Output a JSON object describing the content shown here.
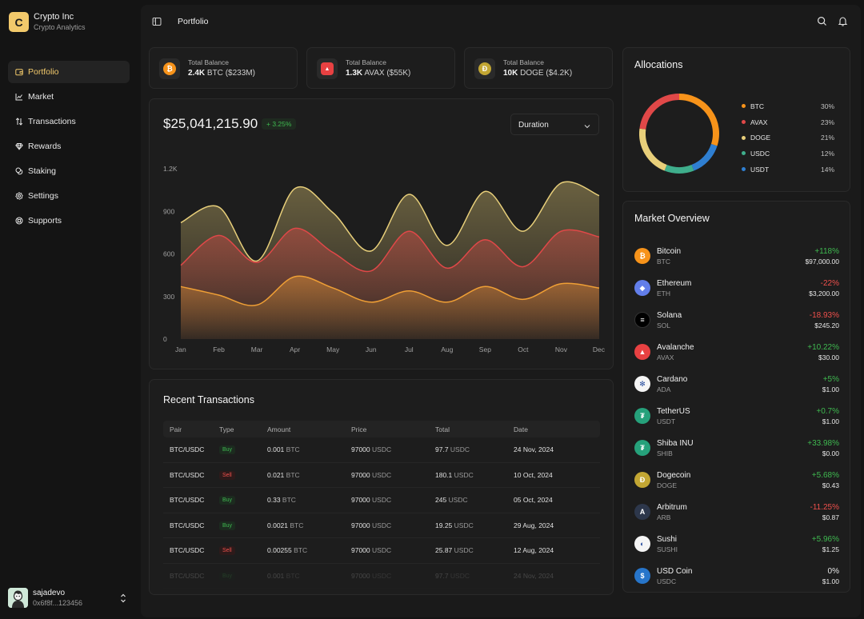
{
  "brand": {
    "logo_letter": "C",
    "name": "Crypto Inc",
    "subtitle": "Crypto Analytics"
  },
  "nav": [
    {
      "label": "Portfolio",
      "icon": "wallet-icon",
      "active": true
    },
    {
      "label": "Market",
      "icon": "chart-icon"
    },
    {
      "label": "Transactions",
      "icon": "arrows-updown-icon"
    },
    {
      "label": "Rewards",
      "icon": "gem-icon"
    },
    {
      "label": "Staking",
      "icon": "coins-icon"
    },
    {
      "label": "Settings",
      "icon": "gear-icon"
    },
    {
      "label": "Supports",
      "icon": "lifebuoy-icon"
    }
  ],
  "user": {
    "name": "sajadevo",
    "address": "0x6f8f...123456"
  },
  "header": {
    "title": "Portfolio"
  },
  "balances": [
    {
      "label": "Total Balance",
      "amount": "2.4K",
      "asset": "BTC",
      "usd": "($233M)",
      "color": "#f7931a",
      "glyph": "₿"
    },
    {
      "label": "Total Balance",
      "amount": "1.3K",
      "asset": "AVAX",
      "usd": "($55K)",
      "color": "#e84142",
      "glyph": "▲"
    },
    {
      "label": "Total Balance",
      "amount": "10K",
      "asset": "DOGE",
      "usd": "($4.2K)",
      "color": "#c2a633",
      "glyph": "Ð"
    }
  ],
  "portfolio": {
    "total": "$25,041,215.90",
    "change": "+ 3.25%",
    "duration_label": "Duration"
  },
  "chart_data": {
    "type": "area",
    "categories": [
      "Jan",
      "Feb",
      "Mar",
      "Apr",
      "May",
      "Jun",
      "Jul",
      "Aug",
      "Sep",
      "Oct",
      "Nov",
      "Dec"
    ],
    "yticks": [
      "0",
      "300",
      "600",
      "900",
      "1.2K"
    ],
    "ylim": [
      0,
      1200
    ],
    "series": [
      {
        "color": "#e8cf7a",
        "values": [
          820,
          930,
          550,
          1060,
          890,
          620,
          1020,
          660,
          1040,
          760,
          1100,
          1010
        ]
      },
      {
        "color": "#e04848",
        "values": [
          520,
          730,
          540,
          780,
          610,
          480,
          760,
          500,
          700,
          510,
          760,
          720
        ]
      },
      {
        "color": "#ef9f35",
        "values": [
          370,
          310,
          240,
          440,
          360,
          260,
          340,
          260,
          370,
          280,
          390,
          360
        ]
      }
    ]
  },
  "transactions": {
    "title": "Recent Transactions",
    "columns": [
      "Pair",
      "Type",
      "Amount",
      "Price",
      "Total",
      "Date"
    ],
    "rows": [
      {
        "pair": "BTC/USDC",
        "type": "Buy",
        "amount": "0.001",
        "amount_unit": "BTC",
        "price": "97000",
        "price_unit": "USDC",
        "total": "97.7",
        "total_unit": "USDC",
        "date": "24 Nov, 2024"
      },
      {
        "pair": "BTC/USDC",
        "type": "Sell",
        "amount": "0.021",
        "amount_unit": "BTC",
        "price": "97000",
        "price_unit": "USDC",
        "total": "180.1",
        "total_unit": "USDC",
        "date": "10 Oct, 2024"
      },
      {
        "pair": "BTC/USDC",
        "type": "Buy",
        "amount": "0.33",
        "amount_unit": "BTC",
        "price": "97000",
        "price_unit": "USDC",
        "total": "245",
        "total_unit": "USDC",
        "date": "05 Oct, 2024"
      },
      {
        "pair": "BTC/USDC",
        "type": "Buy",
        "amount": "0.0021",
        "amount_unit": "BTC",
        "price": "97000",
        "price_unit": "USDC",
        "total": "19.25",
        "total_unit": "USDC",
        "date": "29 Aug, 2024"
      },
      {
        "pair": "BTC/USDC",
        "type": "Sell",
        "amount": "0.00255",
        "amount_unit": "BTC",
        "price": "97000",
        "price_unit": "USDC",
        "total": "25.87",
        "total_unit": "USDC",
        "date": "12 Aug, 2024"
      },
      {
        "pair": "BTC/USDC",
        "type": "Buy",
        "amount": "0.001",
        "amount_unit": "BTC",
        "price": "97000",
        "price_unit": "USDC",
        "total": "97.7",
        "total_unit": "USDC",
        "date": "24 Nov, 2024"
      }
    ]
  },
  "allocations": {
    "title": "Allocations",
    "items": [
      {
        "name": "BTC",
        "pct": "30%",
        "value": 30,
        "color": "#f7931a"
      },
      {
        "name": "AVAX",
        "pct": "23%",
        "value": 23,
        "color": "#e04848"
      },
      {
        "name": "DOGE",
        "pct": "21%",
        "value": 21,
        "color": "#e8cf7a"
      },
      {
        "name": "USDC",
        "pct": "12%",
        "value": 12,
        "color": "#3fae8c"
      },
      {
        "name": "USDT",
        "pct": "14%",
        "value": 14,
        "color": "#2f7fd1"
      }
    ]
  },
  "market": {
    "title": "Market Overview",
    "items": [
      {
        "name": "Bitcoin",
        "symbol": "BTC",
        "change": "+118%",
        "price": "$97,000.00",
        "trend": "pos",
        "color": "#f7931a",
        "glyph": "₿"
      },
      {
        "name": "Ethereum",
        "symbol": "ETH",
        "change": "-22%",
        "price": "$3,200.00",
        "trend": "neg",
        "color": "#627eea",
        "glyph": "◆"
      },
      {
        "name": "Solana",
        "symbol": "SOL",
        "change": "-18.93%",
        "price": "$245.20",
        "trend": "neg",
        "color": "#000000",
        "glyph": "≡"
      },
      {
        "name": "Avalanche",
        "symbol": "AVAX",
        "change": "+10.22%",
        "price": "$30.00",
        "trend": "pos",
        "color": "#e84142",
        "glyph": "▲"
      },
      {
        "name": "Cardano",
        "symbol": "ADA",
        "change": "+5%",
        "price": "$1.00",
        "trend": "pos",
        "color": "#f5f5f5",
        "glyph": "✻"
      },
      {
        "name": "TetherUS",
        "symbol": "USDT",
        "change": "+0.7%",
        "price": "$1.00",
        "trend": "pos",
        "color": "#26a17b",
        "glyph": "₮"
      },
      {
        "name": "Shiba INU",
        "symbol": "SHIB",
        "change": "+33.98%",
        "price": "$0.00",
        "trend": "pos",
        "color": "#26a17b",
        "glyph": "₮"
      },
      {
        "name": "Dogecoin",
        "symbol": "DOGE",
        "change": "+5.68%",
        "price": "$0.43",
        "trend": "pos",
        "color": "#c2a633",
        "glyph": "Ð"
      },
      {
        "name": "Arbitrum",
        "symbol": "ARB",
        "change": "-11.25%",
        "price": "$0.87",
        "trend": "neg",
        "color": "#2d374b",
        "glyph": "A"
      },
      {
        "name": "Sushi",
        "symbol": "SUSHI",
        "change": "+5.96%",
        "price": "$1.25",
        "trend": "pos",
        "color": "#f5f5f5",
        "glyph": "◐"
      },
      {
        "name": "USD Coin",
        "symbol": "USDC",
        "change": "0%",
        "price": "$1.00",
        "trend": "neu",
        "color": "#2775ca",
        "glyph": "$"
      }
    ]
  }
}
